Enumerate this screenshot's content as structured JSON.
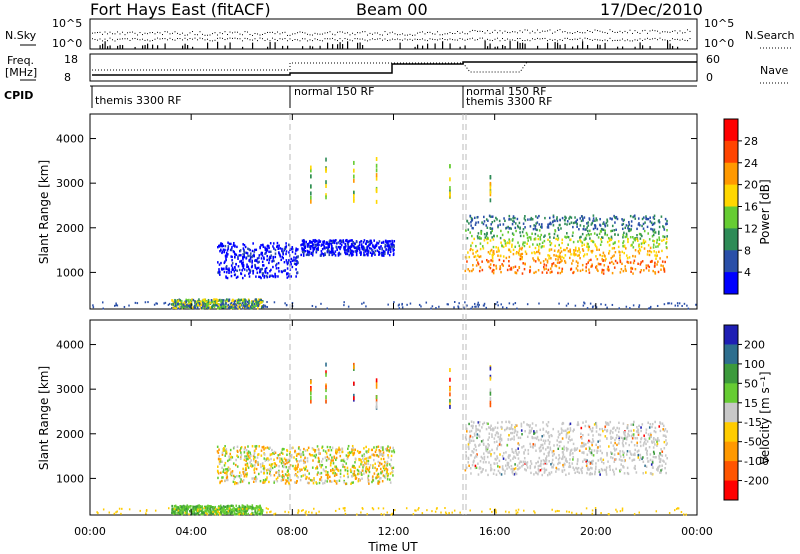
{
  "header": {
    "station": "Fort Hays East (fitACF)",
    "beam": "Beam 00",
    "date": "17/Dec/2010"
  },
  "panels": {
    "noise": {
      "left_label": "N.Sky",
      "right_label": "N.Search",
      "left_ticks": [
        "10^5",
        "10^0"
      ],
      "right_ticks": [
        "10^5",
        "10^0"
      ]
    },
    "freq": {
      "left_label_1": "Freq.",
      "left_label_2": "[MHz]",
      "right_label": "Nave",
      "left_ticks": [
        "18",
        "8"
      ],
      "right_ticks": [
        "60",
        "0"
      ]
    },
    "cpid": {
      "label": "CPID",
      "segments": [
        "themis 3300 RF",
        "normal 150 RF",
        "normal 150 RF",
        "themis 3300 RF"
      ]
    }
  },
  "chart_data": [
    {
      "type": "heatmap",
      "name": "power",
      "ylabel": "Slant Range [km]",
      "xlabel": "Time UT",
      "ylim": [
        180,
        4550
      ],
      "y_ticks": [
        "1000",
        "2000",
        "3000",
        "4000"
      ],
      "x_ticks": [
        "00:00",
        "04:00",
        "08:00",
        "12:00",
        "16:00",
        "20:00",
        "00:00"
      ],
      "colorbar": {
        "label": "Power [dB]",
        "ticks": [
          "4",
          "8",
          "12",
          "16",
          "20",
          "24",
          "28"
        ],
        "colors": [
          "#0000ff",
          "#2a4fa8",
          "#2e8b57",
          "#66cc33",
          "#ffd700",
          "#ff9900",
          "#ff4400",
          "#ff0000"
        ]
      },
      "echo_regions": [
        {
          "t": [
            3.2,
            6.8
          ],
          "r": [
            220,
            420
          ],
          "level": "mixed"
        },
        {
          "t": [
            5.0,
            8.2
          ],
          "r": [
            900,
            1700
          ],
          "level": "low"
        },
        {
          "t": [
            8.3,
            12.0
          ],
          "r": [
            1400,
            1750
          ],
          "level": "low"
        },
        {
          "t": [
            14.8,
            22.8
          ],
          "r": [
            1000,
            2300
          ],
          "level": "high"
        }
      ]
    },
    {
      "type": "heatmap",
      "name": "velocity",
      "ylabel": "Slant Range [km]",
      "xlabel": "Time UT",
      "ylim": [
        180,
        4550
      ],
      "y_ticks": [
        "1000",
        "2000",
        "3000",
        "4000"
      ],
      "x_ticks": [
        "00:00",
        "04:00",
        "08:00",
        "12:00",
        "16:00",
        "20:00",
        "00:00"
      ],
      "colorbar": {
        "label": "Velocity [m s⁻¹]",
        "ticks": [
          "200",
          "100",
          "50",
          "15",
          "-15",
          "-50",
          "-100",
          "-200"
        ],
        "colors": [
          "#1f1fb4",
          "#2e6e8e",
          "#3c9a3c",
          "#66cc33",
          "#c8c8c8",
          "#ffcc00",
          "#ff9900",
          "#ff5500",
          "#ff0000"
        ]
      },
      "echo_regions": [
        {
          "t": [
            3.2,
            6.8
          ],
          "r": [
            220,
            420
          ],
          "level": "green"
        },
        {
          "t": [
            5.0,
            12.0
          ],
          "r": [
            900,
            1750
          ],
          "level": "mixed"
        },
        {
          "t": [
            14.8,
            22.8
          ],
          "r": [
            1100,
            2300
          ],
          "level": "grey"
        }
      ]
    }
  ],
  "colors": {
    "scan_boundary": "#bbbbbb"
  }
}
